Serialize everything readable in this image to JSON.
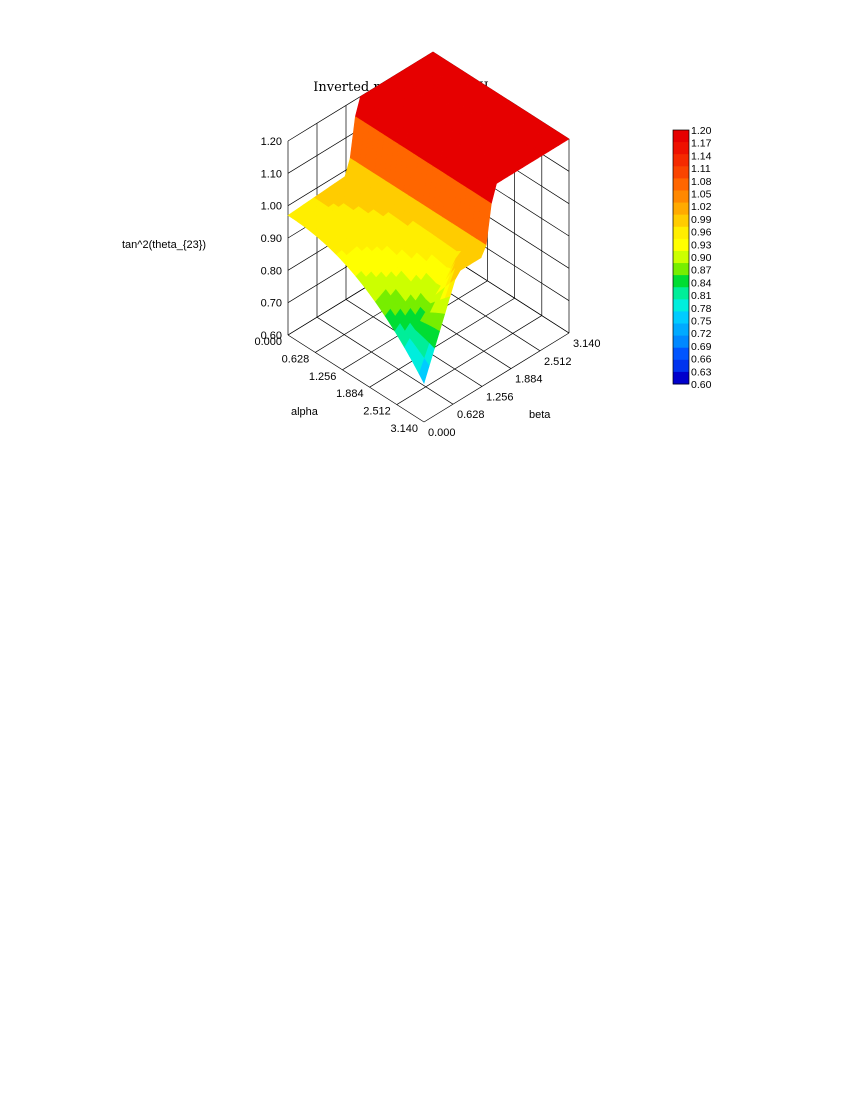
{
  "chart_data": {
    "type": "surface3d",
    "title": "Inverted mass hierarchy II",
    "zlabel": "tan^2(theta_{23})",
    "xlabel": "alpha",
    "ylabel": "beta",
    "x_ticks": [
      "0.000",
      "0.628",
      "1.256",
      "1.884",
      "2.512",
      "3.140"
    ],
    "y_ticks": [
      "0.000",
      "0.628",
      "1.256",
      "1.884",
      "2.512",
      "3.140"
    ],
    "z_ticks": [
      "0.60",
      "0.70",
      "0.80",
      "0.90",
      "1.00",
      "1.10",
      "1.20"
    ],
    "xlim": [
      0,
      3.14
    ],
    "ylim": [
      0,
      3.14
    ],
    "zlim": [
      0.6,
      1.2
    ],
    "colorbar": {
      "labels": [
        "1.20",
        "1.17",
        "1.14",
        "1.11",
        "1.08",
        "1.05",
        "1.02",
        "0.99",
        "0.96",
        "0.93",
        "0.90",
        "0.87",
        "0.84",
        "0.81",
        "0.78",
        "0.75",
        "0.72",
        "0.69",
        "0.66",
        "0.63",
        "0.60"
      ],
      "colors": [
        "#e60000",
        "#ee1100",
        "#f52a00",
        "#fa4400",
        "#ff6600",
        "#ff8800",
        "#ffaa00",
        "#ffcc00",
        "#ffee00",
        "#ffff00",
        "#ccff00",
        "#77ee00",
        "#00dd33",
        "#00ee99",
        "#00eedd",
        "#00ccff",
        "#00aaff",
        "#0088ff",
        "#0055ff",
        "#0033ee",
        "#0000cc"
      ]
    },
    "surface_regions": [
      {
        "beta_range": [
          0.0,
          1.3
        ],
        "alpha": "all",
        "value_range": [
          0.7,
          1.0
        ],
        "description_colors": "blue-green to yellow"
      },
      {
        "beta_range": [
          1.3,
          3.14
        ],
        "alpha": "all",
        "value_range": [
          1.0,
          1.2
        ],
        "description_colors": "orange to red plateau"
      }
    ]
  }
}
